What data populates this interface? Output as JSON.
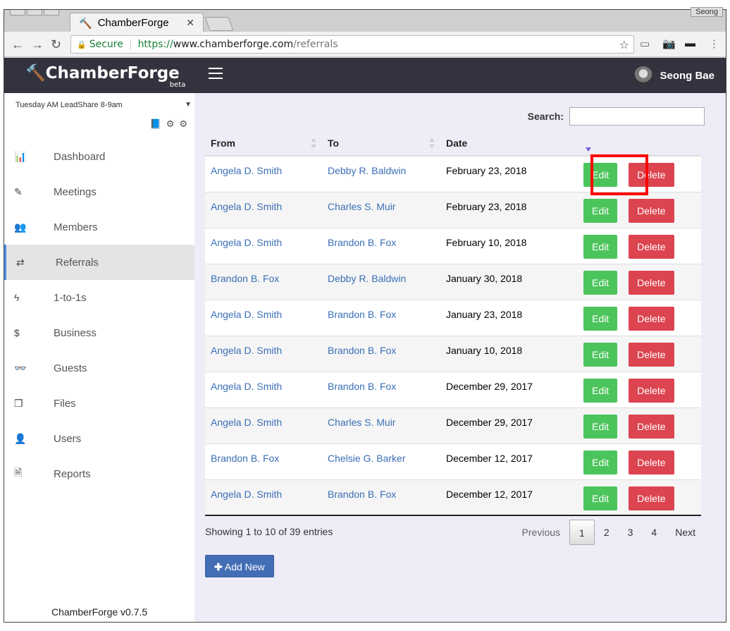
{
  "browser": {
    "tab_title": "ChamberForge",
    "profile": "Seong",
    "secure_label": "Secure",
    "url_scheme": "https://",
    "url_host": "www.chamberforge.com",
    "url_path": "/referrals"
  },
  "header": {
    "logo": "ChamberForge",
    "beta": "beta",
    "user_name": "Seong Bae"
  },
  "sidebar": {
    "group": "Tuesday AM LeadShare 8-9am",
    "items": [
      {
        "label": "Dashboard",
        "icon": "bar-chart-icon",
        "glyph": "📊"
      },
      {
        "label": "Meetings",
        "icon": "pencil-icon",
        "glyph": "✎"
      },
      {
        "label": "Members",
        "icon": "users-icon",
        "glyph": "👥"
      },
      {
        "label": "Referrals",
        "icon": "exchange-icon",
        "glyph": "⇄"
      },
      {
        "label": "1-to-1s",
        "icon": "bolt-icon",
        "glyph": "ϟ"
      },
      {
        "label": "Business",
        "icon": "dollar-icon",
        "glyph": "$"
      },
      {
        "label": "Guests",
        "icon": "glasses-icon",
        "glyph": "👓"
      },
      {
        "label": "Files",
        "icon": "files-icon",
        "glyph": "❐"
      },
      {
        "label": "Users",
        "icon": "user-icon",
        "glyph": "👤"
      },
      {
        "label": "Reports",
        "icon": "file-icon",
        "glyph": "🗎"
      }
    ],
    "version": "ChamberForge v0.7.5",
    "active": "Referrals"
  },
  "main": {
    "search_label": "Search:",
    "search_value": "",
    "columns": [
      "From",
      "To",
      "Date"
    ],
    "rows": [
      {
        "from": "Angela D. Smith",
        "to": "Debby R. Baldwin",
        "date": "February 23, 2018"
      },
      {
        "from": "Angela D. Smith",
        "to": "Charles S. Muir",
        "date": "February 23, 2018"
      },
      {
        "from": "Angela D. Smith",
        "to": "Brandon B. Fox",
        "date": "February 10, 2018"
      },
      {
        "from": "Brandon B. Fox",
        "to": "Debby R. Baldwin",
        "date": "January 30, 2018"
      },
      {
        "from": "Angela D. Smith",
        "to": "Brandon B. Fox",
        "date": "January 23, 2018"
      },
      {
        "from": "Angela D. Smith",
        "to": "Brandon B. Fox",
        "date": "January 10, 2018"
      },
      {
        "from": "Angela D. Smith",
        "to": "Brandon B. Fox",
        "date": "December 29, 2017"
      },
      {
        "from": "Angela D. Smith",
        "to": "Charles S. Muir",
        "date": "December 29, 2017"
      },
      {
        "from": "Brandon B. Fox",
        "to": "Chelsie G. Barker",
        "date": "December 12, 2017"
      },
      {
        "from": "Angela D. Smith",
        "to": "Brandon B. Fox",
        "date": "December 12, 2017"
      }
    ],
    "edit_label": "Edit",
    "delete_label": "Delete",
    "info": "Showing 1 to 10 of 39 entries",
    "pager": {
      "previous": "Previous",
      "pages": [
        "1",
        "2",
        "3",
        "4"
      ],
      "current": "1",
      "next": "Next"
    },
    "add_label": "Add New"
  },
  "colors": {
    "header_bg": "#33333f",
    "edit": "#4cc45c",
    "delete": "#dc4450",
    "link": "#3a6eb5",
    "primary": "#436db5",
    "highlight": "#ff0000"
  }
}
